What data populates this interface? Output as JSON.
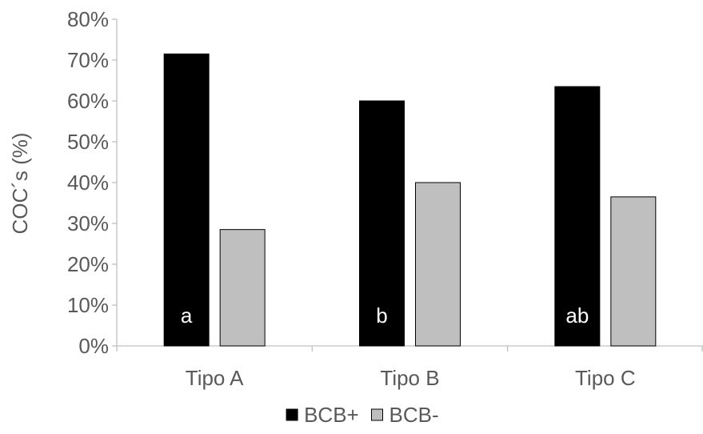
{
  "chart_data": {
    "type": "bar",
    "title": "",
    "xlabel": "",
    "ylabel": "COC´s (%)",
    "ylim": [
      0,
      80
    ],
    "y_tick_step": 10,
    "y_tick_labels": [
      "0%",
      "10%",
      "20%",
      "30%",
      "40%",
      "50%",
      "60%",
      "70%",
      "80%"
    ],
    "categories": [
      "Tipo A",
      "Tipo B",
      "Tipo C"
    ],
    "series": [
      {
        "name": "BCB+",
        "values": [
          71.5,
          60.0,
          63.5
        ],
        "color": "#000000"
      },
      {
        "name": "BCB-",
        "values": [
          28.5,
          40.0,
          36.5
        ],
        "color": "#bfbfbf"
      }
    ],
    "annotations": [
      {
        "category": "Tipo A",
        "series": "BCB+",
        "text": "a"
      },
      {
        "category": "Tipo B",
        "series": "BCB+",
        "text": "b"
      },
      {
        "category": "Tipo C",
        "series": "BCB+",
        "text": "ab"
      }
    ],
    "grid": false,
    "legend_position": "bottom"
  },
  "colors": {
    "axis": "#bfbfbf",
    "text": "#595959",
    "annotation_text": "#ffffff"
  }
}
